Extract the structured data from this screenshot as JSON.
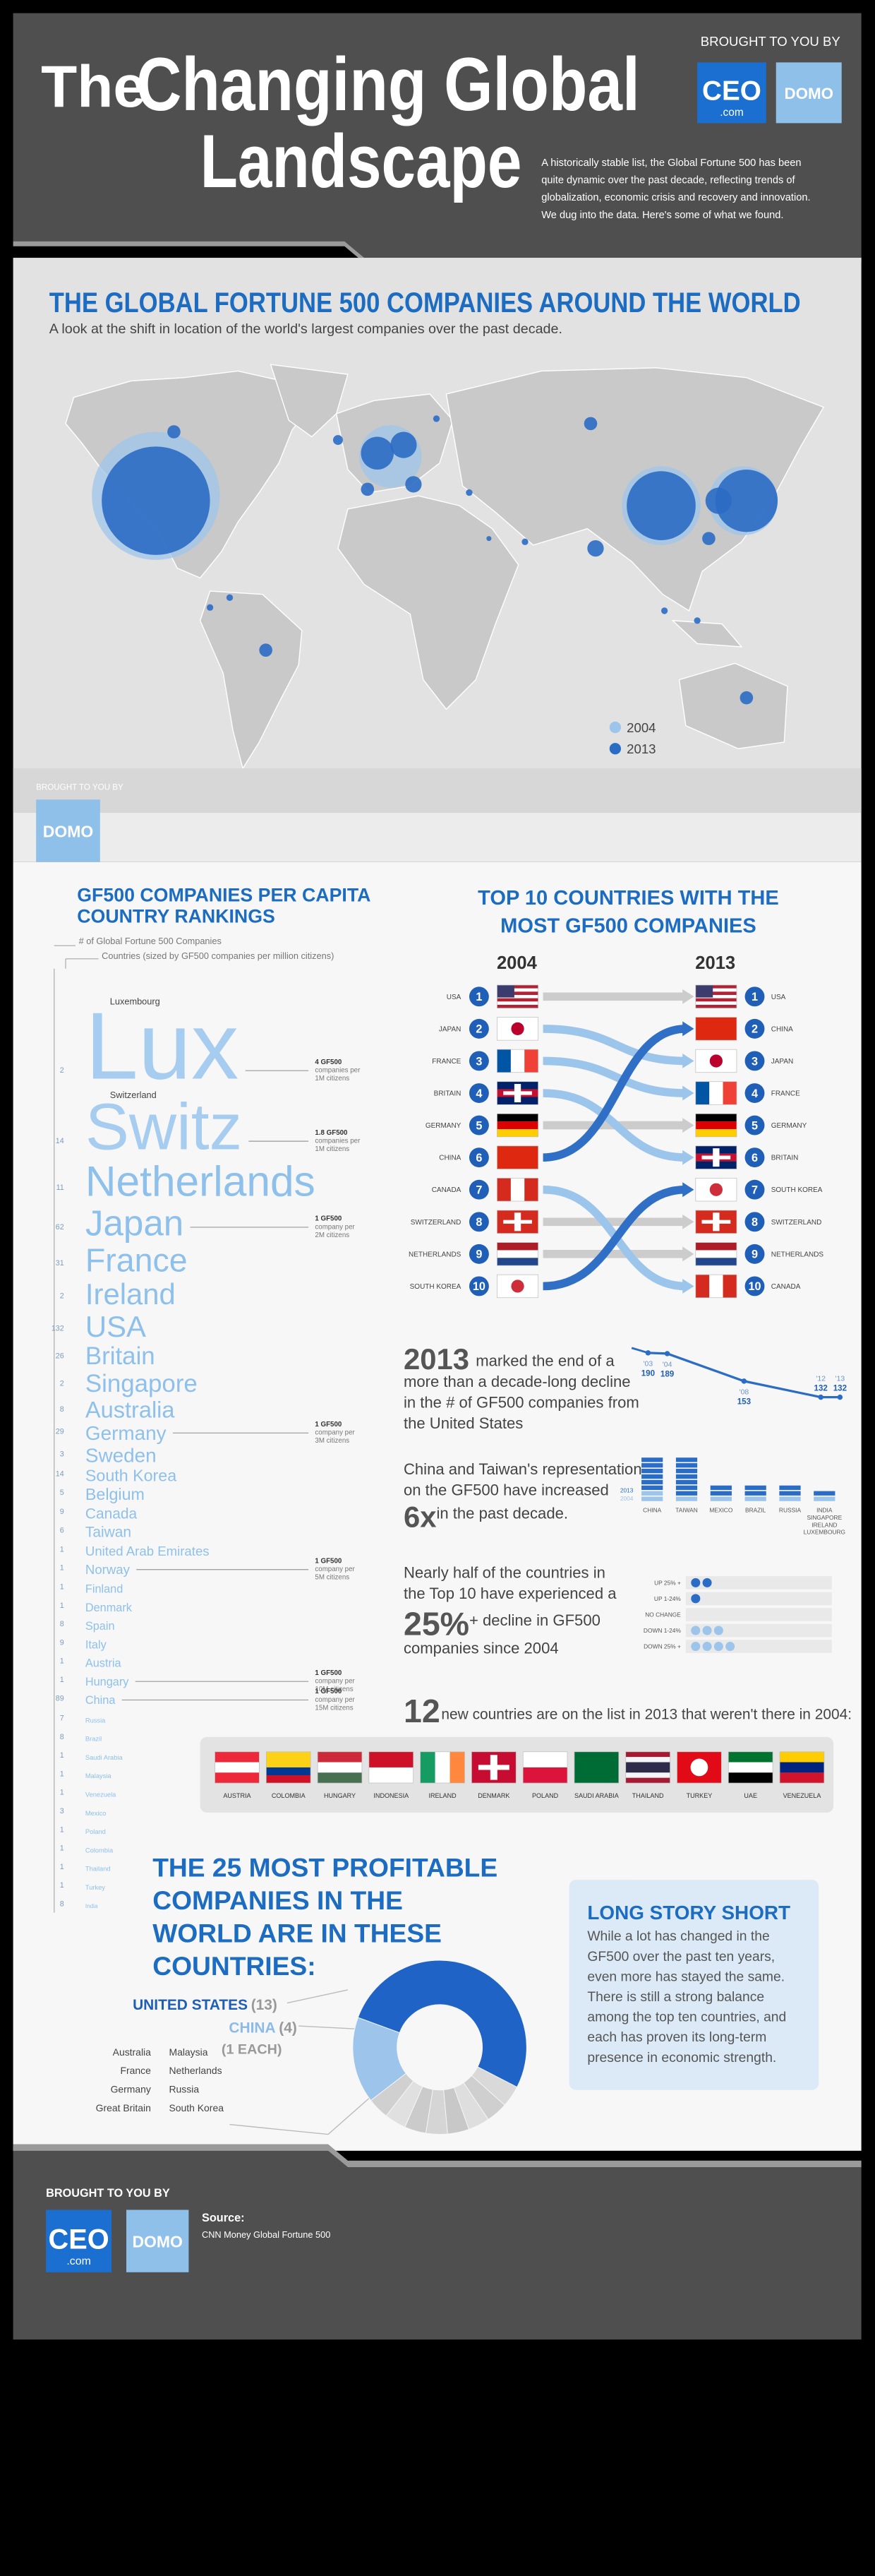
{
  "header": {
    "title_small": "The",
    "title_line1": "Changing Global",
    "title_line2": "Landscape",
    "brought_by": "BROUGHT TO YOU BY",
    "ceo_logo": "CEO",
    "ceo_logo_sub": ".com",
    "domo_logo": "DOMO",
    "description": [
      "A historically stable list, the Global Fortune 500 has been",
      "quite dynamic over the past decade, reflecting trends of",
      "globalization, economic crisis and recovery and innovation.",
      "We dug into the data. Here's some of what we found."
    ]
  },
  "map": {
    "title": "THE GLOBAL FORTUNE 500 COMPANIES AROUND THE WORLD",
    "subtitle": "A look at the shift in location of the world's largest companies over the past decade.",
    "legend": [
      {
        "name": "2004",
        "color": "#9dc4ea"
      },
      {
        "name": "2013",
        "color": "#2b6cc4"
      }
    ],
    "brought_by": "BROUGHT TO YOU BY",
    "domo_logo": "DOMO"
  },
  "per_capita": {
    "title": [
      "GF500 COMPANIES PER CAPITA",
      "COUNTRY RANKINGS"
    ],
    "legend_count": "# of Global Fortune 500 Companies",
    "legend_size": "Countries (sized by GF500 companies  per million citizens)",
    "countries": [
      {
        "name": "Lux",
        "full_name": "Luxembourg",
        "count": 2,
        "note": [
          "4 GF500",
          "companies per",
          "1M citizens"
        ]
      },
      {
        "name": "Switz",
        "full_name": "Switzerland",
        "count": 14,
        "note": [
          "1.8 GF500",
          "companies per",
          "1M citizens"
        ]
      },
      {
        "name": "Netherlands",
        "count": 11
      },
      {
        "name": "Japan",
        "count": 62,
        "note": [
          "1 GF500",
          "company per",
          "2M citizens"
        ]
      },
      {
        "name": "France",
        "count": 31
      },
      {
        "name": "Ireland",
        "count": 2
      },
      {
        "name": "USA",
        "count": 132
      },
      {
        "name": "Britain",
        "count": 26
      },
      {
        "name": "Singapore",
        "count": 2
      },
      {
        "name": "Australia",
        "count": 8
      },
      {
        "name": "Germany",
        "count": 29,
        "note": [
          "1 GF500",
          "company per",
          "3M citizens"
        ]
      },
      {
        "name": "Sweden",
        "count": 3
      },
      {
        "name": "South Korea",
        "count": 14
      },
      {
        "name": "Belgium",
        "count": 5
      },
      {
        "name": "Canada",
        "count": 9
      },
      {
        "name": "Taiwan",
        "count": 6
      },
      {
        "name": "United Arab Emirates",
        "count": 1
      },
      {
        "name": "Norway",
        "count": 1,
        "note": [
          "1 GF500",
          "company per",
          "5M citizens"
        ]
      },
      {
        "name": "Finland",
        "count": 1
      },
      {
        "name": "Denmark",
        "count": 1
      },
      {
        "name": "Spain",
        "count": 8
      },
      {
        "name": "Italy",
        "count": 9
      },
      {
        "name": "Austria",
        "count": 1
      },
      {
        "name": "Hungary",
        "count": 1,
        "note": [
          "1 GF500",
          "company per",
          "10M citizens"
        ]
      },
      {
        "name": "China",
        "count": 89,
        "note": [
          "1 GF500",
          "company per",
          "15M citizens"
        ]
      },
      {
        "name": "Russia",
        "count": 7
      },
      {
        "name": "Brazil",
        "count": 8
      },
      {
        "name": "Saudi Arabia",
        "count": 1
      },
      {
        "name": "Malaysia",
        "count": 1
      },
      {
        "name": "Venezuela",
        "count": 1
      },
      {
        "name": "Mexico",
        "count": 3
      },
      {
        "name": "Poland",
        "count": 1
      },
      {
        "name": "Colombia",
        "count": 1
      },
      {
        "name": "Thailand",
        "count": 1
      },
      {
        "name": "Turkey",
        "count": 1
      },
      {
        "name": "India",
        "count": 8
      }
    ]
  },
  "top10": {
    "title": [
      "TOP 10 COUNTRIES WITH THE",
      "MOST GF500 COMPANIES"
    ],
    "year_left": "2004",
    "year_right": "2013",
    "ranks": [
      1,
      2,
      3,
      4,
      5,
      6,
      7,
      8,
      9,
      10
    ],
    "countries_2004": [
      {
        "name": "USA",
        "flag": [
          "#b22234",
          "#ffffff",
          "#b22234",
          "#ffffff",
          "#b22234",
          "#ffffff",
          "#b22234"
        ],
        "canton": "#3c3b6e"
      },
      {
        "name": "JAPAN",
        "flag": [
          "#ffffff"
        ],
        "disc": "#bc002d"
      },
      {
        "name": "FRANCE",
        "flag": [
          "#0055a4",
          "#ffffff",
          "#ef4135"
        ],
        "flag_dir": "v"
      },
      {
        "name": "BRITAIN",
        "flag": [
          "#012169",
          "#c8102e",
          "#012169"
        ],
        "cross": "#ffffff"
      },
      {
        "name": "GERMANY",
        "flag": [
          "#000000",
          "#dd0000",
          "#ffce00"
        ]
      },
      {
        "name": "CHINA",
        "flag": [
          "#de2910"
        ]
      },
      {
        "name": "CANADA",
        "flag": [
          "#d52b1e",
          "#ffffff",
          "#d52b1e"
        ],
        "flag_dir": "v"
      },
      {
        "name": "SWITZERLAND",
        "flag": [
          "#d52b1e"
        ],
        "cross": "#ffffff"
      },
      {
        "name": "NETHERLANDS",
        "flag": [
          "#ae1c28",
          "#ffffff",
          "#21468b"
        ]
      },
      {
        "name": "SOUTH KOREA",
        "flag": [
          "#ffffff"
        ],
        "disc": "#cd2e3a"
      }
    ],
    "countries_2013": [
      {
        "name": "USA",
        "flag": [
          "#b22234",
          "#ffffff",
          "#b22234",
          "#ffffff",
          "#b22234",
          "#ffffff",
          "#b22234"
        ],
        "canton": "#3c3b6e"
      },
      {
        "name": "CHINA",
        "flag": [
          "#de2910"
        ]
      },
      {
        "name": "JAPAN",
        "flag": [
          "#ffffff"
        ],
        "disc": "#bc002d"
      },
      {
        "name": "FRANCE",
        "flag": [
          "#0055a4",
          "#ffffff",
          "#ef4135"
        ],
        "flag_dir": "v"
      },
      {
        "name": "GERMANY",
        "flag": [
          "#000000",
          "#dd0000",
          "#ffce00"
        ]
      },
      {
        "name": "BRITAIN",
        "flag": [
          "#012169",
          "#c8102e",
          "#012169"
        ],
        "cross": "#ffffff"
      },
      {
        "name": "SOUTH KOREA",
        "flag": [
          "#ffffff"
        ],
        "disc": "#cd2e3a"
      },
      {
        "name": "SWITZERLAND",
        "flag": [
          "#d52b1e"
        ],
        "cross": "#ffffff"
      },
      {
        "name": "NETHERLANDS",
        "flag": [
          "#ae1c28",
          "#ffffff",
          "#21468b"
        ]
      },
      {
        "name": "CANADA",
        "flag": [
          "#d52b1e",
          "#ffffff",
          "#d52b1e"
        ],
        "flag_dir": "v"
      }
    ]
  },
  "decline": {
    "big": "2013",
    "lines": [
      "marked the end of a",
      "more than a decade-long decline",
      "in the # of GF500 companies from",
      "the United States"
    ],
    "chart": {
      "type": "line",
      "color": "#2b6cc4",
      "x": [
        {
          "value": 2003,
          "label": "'03"
        },
        {
          "value": 2004,
          "label": "'04"
        },
        {
          "value": 2008,
          "label": "'08"
        },
        {
          "value": 2012,
          "label": "'12"
        },
        {
          "value": 2013,
          "label": "'13"
        }
      ],
      "values": [
        190,
        189,
        153,
        132,
        132
      ]
    }
  },
  "growth": {
    "lines": [
      "China and Taiwan's representation",
      "on the GF500 have increased"
    ],
    "big": "6x",
    "tail": "in the past decade.",
    "chart": {
      "type": "bar",
      "categories": [
        [
          "CHINA"
        ],
        [
          "TAIWAN"
        ],
        [
          "MEXICO"
        ],
        [
          "BRAZIL"
        ],
        [
          "RUSSIA"
        ],
        [
          "INDIA",
          "SINGAPORE",
          "IRELAND",
          "LUXEMBOURG"
        ]
      ],
      "series": [
        {
          "name": "2013",
          "color": "#2b6cc4",
          "values": [
            6,
            7,
            2,
            2,
            2,
            1
          ]
        },
        {
          "name": "2004",
          "color": "#9dc4ea",
          "values": [
            2,
            1,
            1,
            1,
            1,
            1
          ]
        }
      ]
    }
  },
  "change": {
    "lines": [
      "Nearly half of the countries in",
      "the Top 10 have experienced a"
    ],
    "big": "25%",
    "after_big": "+ decline in GF500",
    "last": "companies since 2004",
    "chart": {
      "type": "dot",
      "categories": [
        "UP 25% +",
        "UP 1-24%",
        "NO CHANGE",
        "DOWN 1-24%",
        "DOWN 25% +"
      ],
      "values": [
        2,
        1,
        0,
        3,
        4
      ],
      "colors": [
        "#2b6cc4",
        "#2b6cc4",
        "#2b6cc4",
        "#9dc4ea",
        "#9dc4ea"
      ]
    }
  },
  "new_countries": {
    "count": 12,
    "text": "new countries are on the list in 2013 that weren't there in 2004:",
    "countries": [
      {
        "name": "AUSTRIA",
        "flag": [
          "#ed2939",
          "#ffffff",
          "#ed2939"
        ]
      },
      {
        "name": "COLOMBIA",
        "flag": [
          "#fcd116",
          "#fcd116",
          "#003893",
          "#ce1126"
        ]
      },
      {
        "name": "HUNGARY",
        "flag": [
          "#ce2939",
          "#ffffff",
          "#477050"
        ]
      },
      {
        "name": "INDONESIA",
        "flag": [
          "#ce1126",
          "#ffffff"
        ]
      },
      {
        "name": "IRELAND",
        "flag": [
          "#169b62",
          "#ffffff",
          "#ff883e"
        ],
        "flag_dir": "v"
      },
      {
        "name": "DENMARK",
        "flag": [
          "#c60c30"
        ],
        "cross": "#ffffff"
      },
      {
        "name": "POLAND",
        "flag": [
          "#ffffff",
          "#dc143c"
        ]
      },
      {
        "name": "SAUDI ARABIA",
        "flag": [
          "#006c35"
        ]
      },
      {
        "name": "THAILAND",
        "flag": [
          "#a51931",
          "#f4f5f8",
          "#2d2a4a",
          "#2d2a4a",
          "#f4f5f8",
          "#a51931"
        ]
      },
      {
        "name": "TURKEY",
        "flag": [
          "#e30a17"
        ],
        "disc": "#ffffff"
      },
      {
        "name": "UAE",
        "flag": [
          "#00732f",
          "#ffffff",
          "#000000"
        ]
      },
      {
        "name": "VENEZUELA",
        "flag": [
          "#ffcc00",
          "#00247d",
          "#cf142b"
        ]
      }
    ]
  },
  "profitable": {
    "title": [
      "THE 25 MOST PROFITABLE",
      "COMPANIES IN THE",
      "WORLD ARE IN THESE",
      "COUNTRIES:"
    ],
    "segments": [
      {
        "name": "UNITED STATES",
        "value": 13,
        "value_label": "(13)",
        "color": "#1f63c6"
      },
      {
        "name": "CHINA",
        "value": 4,
        "value_label": "(4)",
        "color": "#9dc4ea"
      }
    ],
    "others": {
      "value": 1,
      "value_label": "(1 EACH)",
      "names_left": [
        "Australia",
        "France",
        "Germany",
        "Great Britain"
      ],
      "names_right": [
        "Malaysia",
        "Netherlands",
        "Russia",
        "South Korea"
      ],
      "colors": [
        "#d9d9d9",
        "#cfcfcf",
        "#dedede",
        "#c8c8c8",
        "#d5d5d5",
        "#cbcbcb",
        "#e0e0e0",
        "#d0d0d0"
      ]
    }
  },
  "summary": {
    "title": "LONG STORY SHORT",
    "lines": [
      "While a lot has changed in the",
      "GF500 over the past ten years,",
      "even more has stayed the same.",
      "There is still a strong balance",
      "among the top ten countries, and",
      "each has proven its long-term",
      "presence in economic strength."
    ]
  },
  "footer": {
    "brought_by": "BROUGHT TO YOU BY",
    "ceo_logo": "CEO",
    "ceo_logo_sub": ".com",
    "domo_logo": "DOMO",
    "source_label": "Source:",
    "source": "CNN Money Global Fortune 500"
  }
}
